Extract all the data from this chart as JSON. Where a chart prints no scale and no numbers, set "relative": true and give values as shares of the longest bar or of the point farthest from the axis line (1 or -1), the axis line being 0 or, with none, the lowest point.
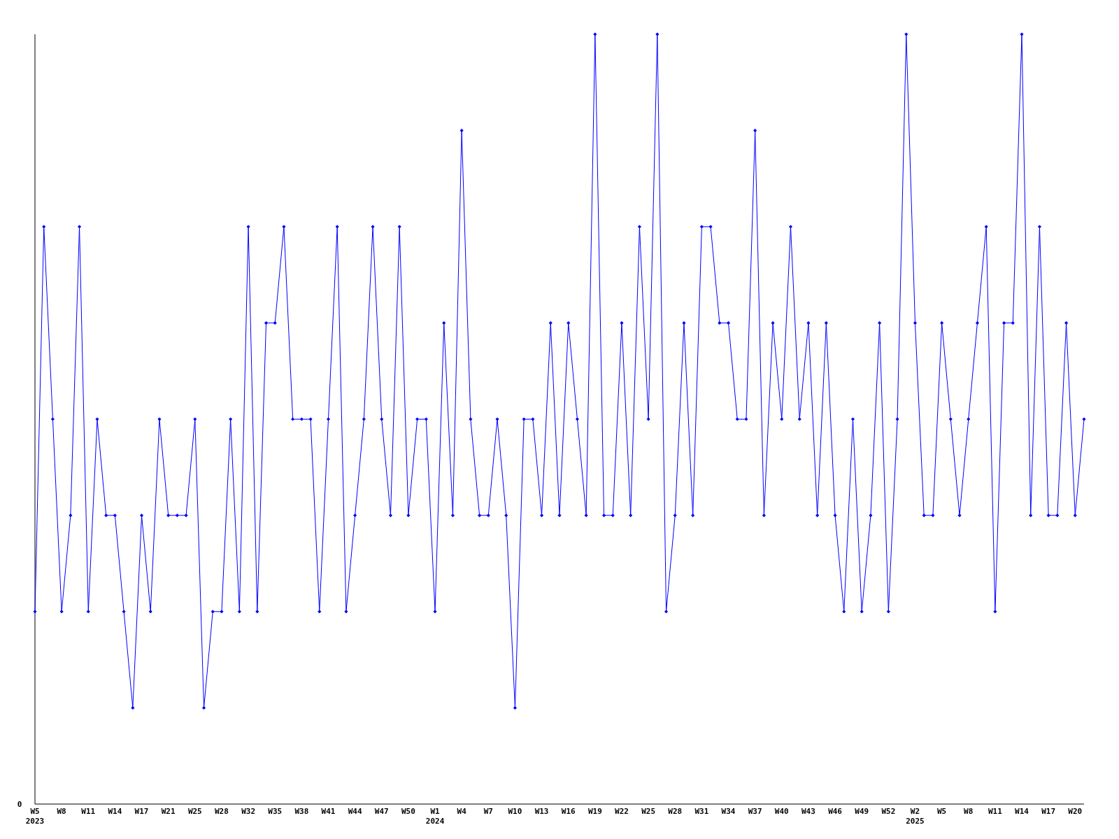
{
  "chart_data": {
    "type": "line",
    "relative": true,
    "marker": "diamond",
    "categories": [
      "W5\n2023",
      null,
      null,
      "W8",
      null,
      null,
      "W11",
      null,
      null,
      "W14",
      null,
      null,
      "W17",
      null,
      null,
      "W21",
      null,
      null,
      "W25",
      null,
      null,
      "W28",
      null,
      null,
      "W32",
      null,
      null,
      "W35",
      null,
      null,
      "W38",
      null,
      null,
      "W41",
      null,
      null,
      "W44",
      null,
      null,
      "W47",
      null,
      null,
      "W50",
      null,
      null,
      "W1\n2024",
      null,
      null,
      "W4",
      null,
      null,
      "W7",
      null,
      null,
      "W10",
      null,
      null,
      "W13",
      null,
      null,
      "W16",
      null,
      null,
      "W19",
      null,
      null,
      "W22",
      null,
      null,
      "W25",
      null,
      null,
      "W28",
      null,
      null,
      "W31",
      null,
      null,
      "W34",
      null,
      null,
      "W37",
      null,
      null,
      "W40",
      null,
      null,
      "W43",
      null,
      null,
      "W46",
      null,
      null,
      "W49",
      null,
      null,
      "W52",
      null,
      null,
      "W2\n2025",
      null,
      null,
      "W5",
      null,
      null,
      "W8",
      null,
      null,
      "W11",
      null,
      null,
      "W14",
      null,
      null,
      "W17",
      null,
      null,
      "W20",
      null
    ],
    "series": [
      {
        "color": "#0000ff",
        "values": [
          0.25,
          0.75,
          0.5,
          0.25,
          0.375,
          0.75,
          0.25,
          0.5,
          0.375,
          0.375,
          0.25,
          0.125,
          0.375,
          0.25,
          0.5,
          0.375,
          0.375,
          0.375,
          0.5,
          0.125,
          0.25,
          0.25,
          0.5,
          0.25,
          0.75,
          0.25,
          0.625,
          0.625,
          0.75,
          0.5,
          0.5,
          0.5,
          0.25,
          0.5,
          0.75,
          0.25,
          0.375,
          0.5,
          0.75,
          0.5,
          0.375,
          0.75,
          0.375,
          0.5,
          0.5,
          0.25,
          0.625,
          0.375,
          0.875,
          0.5,
          0.375,
          0.375,
          0.5,
          0.375,
          0.125,
          0.5,
          0.5,
          0.375,
          0.625,
          0.375,
          0.625,
          0.5,
          0.375,
          1,
          0.375,
          0.375,
          0.625,
          0.375,
          0.75,
          0.5,
          1,
          0.25,
          0.375,
          0.625,
          0.375,
          0.75,
          0.75,
          0.625,
          0.625,
          0.5,
          0.5,
          0.875,
          0.375,
          0.625,
          0.5,
          0.75,
          0.5,
          0.625,
          0.375,
          0.625,
          0.375,
          0.25,
          0.5,
          0.25,
          0.375,
          0.625,
          0.25,
          0.5,
          1,
          0.625,
          0.375,
          0.375,
          0.625,
          0.5,
          0.375,
          0.5,
          0.625,
          0.75,
          0.25,
          0.625,
          0.625,
          1,
          0.375,
          0.75,
          0.375,
          0.375,
          0.625,
          0.375,
          0.5
        ]
      }
    ],
    "annotations": [
      "0"
    ]
  }
}
